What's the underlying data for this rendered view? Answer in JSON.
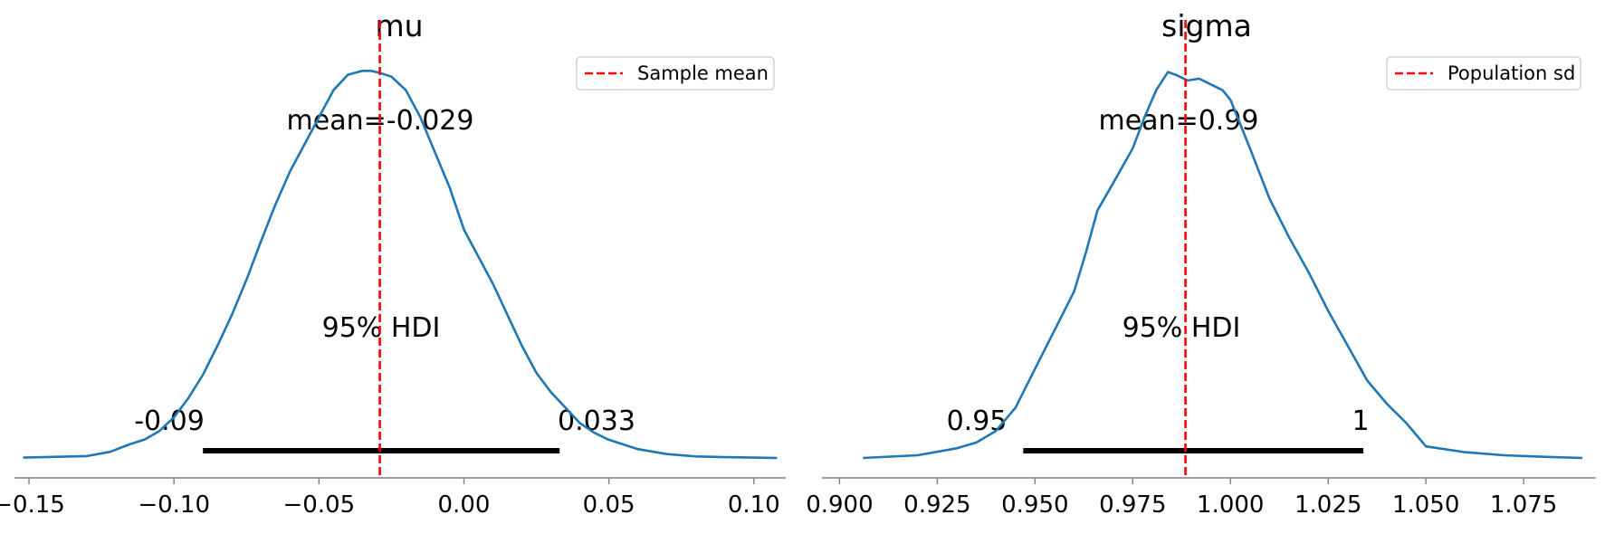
{
  "colors": {
    "density_line": "#1f77b4",
    "reference_line": "#ff0000",
    "hdi_bar": "#000000",
    "axis": "#808080",
    "legend_border": "#cccccc"
  },
  "chart_data": [
    {
      "type": "line",
      "title": "mu",
      "xlabel": "",
      "ylabel": "",
      "xlim": [
        -0.155,
        0.111
      ],
      "ylim": [
        0,
        1
      ],
      "grid": false,
      "x_ticks": [
        -0.15,
        -0.1,
        -0.05,
        0.0,
        0.05,
        0.1
      ],
      "x_tick_labels": [
        "−0.15",
        "−0.10",
        "−0.05",
        "0.00",
        "0.05",
        "0.10"
      ],
      "series": [
        {
          "kind": "kde",
          "x": [
            -0.152,
            -0.13,
            -0.122,
            -0.115,
            -0.11,
            -0.105,
            -0.1,
            -0.095,
            -0.09,
            -0.085,
            -0.08,
            -0.075,
            -0.07,
            -0.065,
            -0.06,
            -0.055,
            -0.05,
            -0.045,
            -0.04,
            -0.035,
            -0.032,
            -0.029,
            -0.025,
            -0.02,
            -0.015,
            -0.01,
            -0.005,
            0.0,
            0.005,
            0.01,
            0.015,
            0.02,
            0.025,
            0.03,
            0.035,
            0.04,
            0.045,
            0.05,
            0.06,
            0.07,
            0.08,
            0.09,
            0.1,
            0.108
          ],
          "y": [
            0.001,
            0.005,
            0.016,
            0.036,
            0.048,
            0.07,
            0.105,
            0.155,
            0.215,
            0.29,
            0.37,
            0.46,
            0.56,
            0.655,
            0.74,
            0.81,
            0.88,
            0.95,
            0.99,
            1.0,
            1.0,
            0.995,
            0.985,
            0.95,
            0.88,
            0.79,
            0.7,
            0.59,
            0.52,
            0.45,
            0.37,
            0.29,
            0.22,
            0.17,
            0.13,
            0.09,
            0.065,
            0.047,
            0.023,
            0.01,
            0.004,
            0.002,
            0.001,
            0.0
          ]
        }
      ],
      "hdi": {
        "low": -0.09,
        "high": 0.033,
        "label": "95% HDI",
        "low_label": "-0.09",
        "high_label": "0.033"
      },
      "mean": {
        "value": -0.029,
        "label": "mean=-0.029"
      },
      "reference_line": {
        "x": -0.029,
        "style": "dashed",
        "legend_label": "Sample mean"
      },
      "legend": {
        "position": "top-right",
        "entries": [
          "Sample mean"
        ]
      }
    },
    {
      "type": "line",
      "title": "sigma",
      "xlabel": "",
      "ylabel": "",
      "xlim": [
        0.8955,
        1.0935
      ],
      "ylim": [
        0,
        1
      ],
      "grid": false,
      "x_ticks": [
        0.9,
        0.925,
        0.95,
        0.975,
        1.0,
        1.025,
        1.05,
        1.075
      ],
      "x_tick_labels": [
        "0.900",
        "0.925",
        "0.950",
        "0.975",
        "1.000",
        "1.025",
        "1.050",
        "1.075"
      ],
      "series": [
        {
          "kind": "kde",
          "x": [
            0.906,
            0.92,
            0.93,
            0.935,
            0.94,
            0.945,
            0.95,
            0.955,
            0.96,
            0.963,
            0.966,
            0.97,
            0.975,
            0.978,
            0.981,
            0.984,
            0.986,
            0.989,
            0.992,
            0.995,
            0.998,
            1.0,
            1.005,
            1.01,
            1.015,
            1.02,
            1.025,
            1.03,
            1.035,
            1.04,
            1.045,
            1.05,
            1.06,
            1.07,
            1.08,
            1.09
          ],
          "y": [
            0.0,
            0.007,
            0.025,
            0.04,
            0.07,
            0.13,
            0.23,
            0.33,
            0.43,
            0.53,
            0.64,
            0.71,
            0.8,
            0.88,
            0.95,
            0.997,
            0.99,
            0.975,
            0.98,
            0.965,
            0.95,
            0.925,
            0.8,
            0.67,
            0.57,
            0.48,
            0.38,
            0.29,
            0.2,
            0.14,
            0.09,
            0.03,
            0.015,
            0.007,
            0.003,
            0.0
          ]
        }
      ],
      "hdi": {
        "low": 0.947,
        "high": 1.034,
        "label": "95% HDI",
        "low_label": "0.95",
        "high_label": "1"
      },
      "mean": {
        "value": 0.99,
        "label": "mean=0.99"
      },
      "reference_line": {
        "x": 0.9885,
        "style": "dashed",
        "legend_label": "Population sd"
      },
      "legend": {
        "position": "top-right",
        "entries": [
          "Population sd"
        ]
      }
    }
  ]
}
